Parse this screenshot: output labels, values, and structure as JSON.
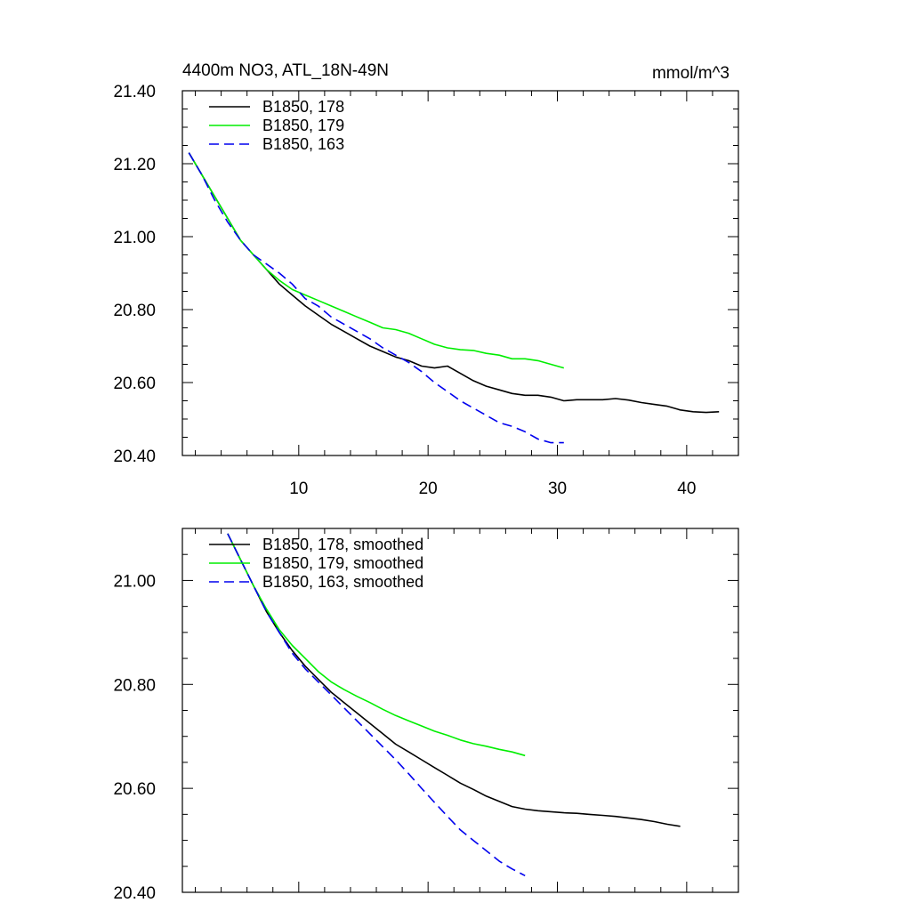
{
  "chart_data": [
    {
      "type": "line",
      "title": "4400m NO3, ATL_18N-49N",
      "units": "mmol/m^3",
      "xlim": [
        1,
        44
      ],
      "ylim": [
        20.4,
        21.4
      ],
      "yticks": [
        "21.40",
        "21.20",
        "21.00",
        "20.80",
        "20.60",
        "20.40"
      ],
      "xticks": [
        "10",
        "20",
        "30",
        "40"
      ],
      "legend_position": "top-left",
      "series": [
        {
          "name": "B1850, 178",
          "color": "#000000",
          "dash": "solid",
          "x": [
            1.5,
            2.5,
            3.5,
            4.5,
            5.5,
            6.5,
            7.5,
            8.5,
            9.5,
            10.5,
            11.5,
            12.5,
            13.5,
            14.5,
            15.5,
            16.5,
            17.5,
            18.5,
            19.5,
            20.5,
            21.5,
            22.5,
            23.5,
            24.5,
            25.5,
            26.5,
            27.5,
            28.5,
            29.5,
            30.5,
            31.5,
            32.5,
            33.5,
            34.5,
            35.5,
            36.5,
            37.5,
            38.5,
            39.5,
            40.5,
            41.5,
            42.5
          ],
          "y": [
            21.23,
            21.17,
            21.11,
            21.05,
            20.99,
            20.95,
            20.91,
            20.87,
            20.84,
            20.81,
            20.785,
            20.76,
            20.74,
            20.72,
            20.7,
            20.685,
            20.67,
            20.66,
            20.645,
            20.64,
            20.645,
            20.625,
            20.605,
            20.59,
            20.58,
            20.57,
            20.565,
            20.565,
            20.56,
            20.55,
            20.553,
            20.553,
            20.553,
            20.556,
            20.552,
            20.545,
            20.54,
            20.535,
            20.525,
            20.52,
            20.518,
            20.52
          ]
        },
        {
          "name": "B1850, 179",
          "color": "#00ee00",
          "dash": "solid",
          "x": [
            1.5,
            2.5,
            3.5,
            4.5,
            5.5,
            6.5,
            7.5,
            8.5,
            9.5,
            10.5,
            11.5,
            12.5,
            13.5,
            14.5,
            15.5,
            16.5,
            17.5,
            18.5,
            19.5,
            20.5,
            21.5,
            22.5,
            23.5,
            24.5,
            25.5,
            26.5,
            27.5,
            28.5,
            29.5,
            30.5
          ],
          "y": [
            21.23,
            21.17,
            21.11,
            21.05,
            20.99,
            20.95,
            20.91,
            20.88,
            20.855,
            20.84,
            20.825,
            20.81,
            20.795,
            20.78,
            20.765,
            20.75,
            20.745,
            20.735,
            20.72,
            20.705,
            20.695,
            20.69,
            20.688,
            20.68,
            20.675,
            20.665,
            20.665,
            20.66,
            20.65,
            20.64
          ]
        },
        {
          "name": "B1850, 163",
          "color": "#0000ee",
          "dash": "dashed",
          "x": [
            1.5,
            2.5,
            3.5,
            4.5,
            5.5,
            6.5,
            7.5,
            8.5,
            9.5,
            10.5,
            11.5,
            12.5,
            13.5,
            14.5,
            15.5,
            16.5,
            17.5,
            18.5,
            19.5,
            20.5,
            21.5,
            22.5,
            23.5,
            24.5,
            25.5,
            26.5,
            27.5,
            28.5,
            29.5,
            30.5
          ],
          "y": [
            21.23,
            21.17,
            21.1,
            21.04,
            20.99,
            20.95,
            20.925,
            20.9,
            20.87,
            20.83,
            20.81,
            20.78,
            20.76,
            20.74,
            20.72,
            20.695,
            20.675,
            20.655,
            20.63,
            20.6,
            20.575,
            20.55,
            20.53,
            20.51,
            20.49,
            20.48,
            20.465,
            20.445,
            20.435,
            20.435
          ]
        }
      ]
    },
    {
      "type": "line",
      "title": "",
      "xlim": [
        1,
        44
      ],
      "ylim": [
        20.4,
        21.1
      ],
      "yticks": [
        "21.00",
        "20.80",
        "20.60",
        "20.40"
      ],
      "xticks": [],
      "legend_position": "top-left",
      "series": [
        {
          "name": "B1850, 178, smoothed",
          "color": "#000000",
          "dash": "solid",
          "x": [
            4.5,
            5.5,
            6.5,
            7.5,
            8.5,
            9.5,
            10.5,
            11.5,
            12.5,
            13.5,
            14.5,
            15.5,
            16.5,
            17.5,
            18.5,
            19.5,
            20.5,
            21.5,
            22.5,
            23.5,
            24.5,
            25.5,
            26.5,
            27.5,
            28.5,
            29.5,
            30.5,
            31.5,
            32.5,
            33.5,
            34.5,
            35.5,
            36.5,
            37.5,
            38.5,
            39.5
          ],
          "y": [
            21.09,
            21.04,
            20.99,
            20.94,
            20.9,
            20.865,
            20.835,
            20.81,
            20.785,
            20.765,
            20.745,
            20.725,
            20.705,
            20.685,
            20.67,
            20.655,
            20.64,
            20.625,
            20.61,
            20.598,
            20.585,
            20.575,
            20.565,
            20.56,
            20.557,
            20.555,
            20.553,
            20.552,
            20.55,
            20.548,
            20.546,
            20.543,
            20.54,
            20.536,
            20.531,
            20.527
          ]
        },
        {
          "name": "B1850, 179, smoothed",
          "color": "#00ee00",
          "dash": "solid",
          "x": [
            4.5,
            5.5,
            6.5,
            7.5,
            8.5,
            9.5,
            10.5,
            11.5,
            12.5,
            13.5,
            14.5,
            15.5,
            16.5,
            17.5,
            18.5,
            19.5,
            20.5,
            21.5,
            22.5,
            23.5,
            24.5,
            25.5,
            26.5,
            27.5
          ],
          "y": [
            21.09,
            21.04,
            20.99,
            20.945,
            20.905,
            20.875,
            20.85,
            20.825,
            20.805,
            20.79,
            20.777,
            20.765,
            20.752,
            20.74,
            20.73,
            20.72,
            20.71,
            20.702,
            20.693,
            20.686,
            20.681,
            20.675,
            20.67,
            20.663
          ]
        },
        {
          "name": "B1850, 163, smoothed",
          "color": "#0000ee",
          "dash": "dashed",
          "x": [
            4.5,
            5.5,
            6.5,
            7.5,
            8.5,
            9.5,
            10.5,
            11.5,
            12.5,
            13.5,
            14.5,
            15.5,
            16.5,
            17.5,
            18.5,
            19.5,
            20.5,
            21.5,
            22.5,
            23.5,
            24.5,
            25.5,
            26.5,
            27.5
          ],
          "y": [
            21.09,
            21.04,
            20.99,
            20.94,
            20.9,
            20.86,
            20.83,
            20.805,
            20.78,
            20.755,
            20.73,
            20.705,
            20.68,
            20.655,
            20.628,
            20.6,
            20.573,
            20.546,
            20.52,
            20.5,
            20.48,
            20.46,
            20.445,
            20.432
          ]
        }
      ]
    }
  ]
}
